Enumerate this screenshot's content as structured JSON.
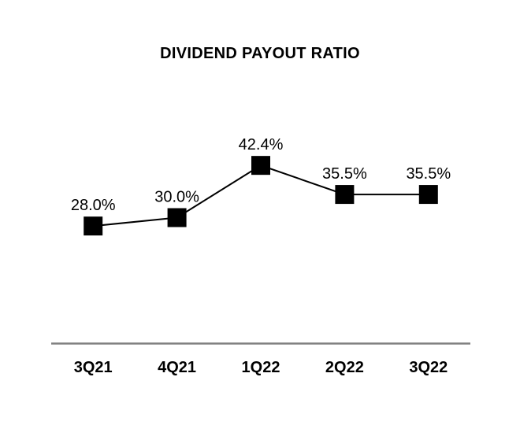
{
  "chart_data": {
    "type": "line",
    "title": "DIVIDEND PAYOUT RATIO",
    "categories": [
      "3Q21",
      "4Q21",
      "1Q22",
      "2Q22",
      "3Q22"
    ],
    "values": [
      28.0,
      30.0,
      42.4,
      35.5,
      35.5
    ],
    "point_labels": [
      "28.0%",
      "30.0%",
      "42.4%",
      "35.5%",
      "35.5%"
    ],
    "xlabel": "",
    "ylabel": "",
    "ylim": [
      0,
      50
    ],
    "grid": false,
    "legend": "none",
    "marker": "square",
    "colors": {
      "series_line": "#000000",
      "marker_fill": "#000000",
      "label_text": "#000000",
      "axis_line": "#808080",
      "background": "#ffffff"
    }
  }
}
